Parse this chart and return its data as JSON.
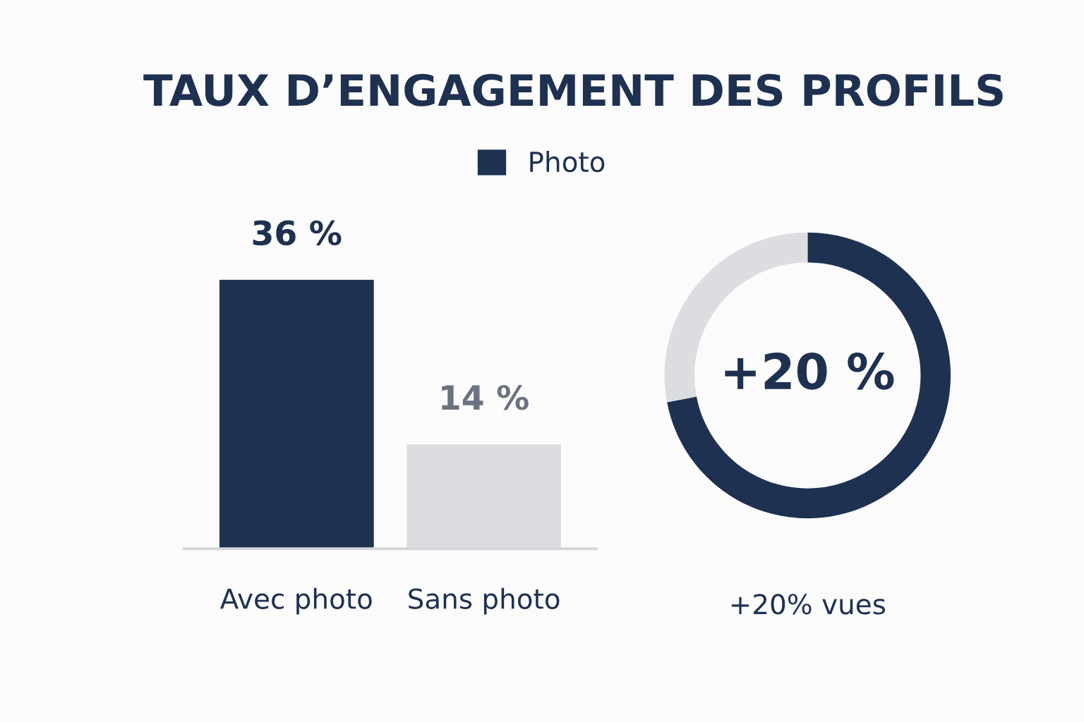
{
  "chart_data": [
    {
      "type": "bar",
      "title": "TAUX D’ENGAGEMENT DES PROFILS",
      "categories": [
        "Avec photo",
        "Sans photo"
      ],
      "series": [
        {
          "name": "Photo",
          "color": "#1f3150",
          "colors": [
            "#1f3150",
            "#dcdde1"
          ],
          "values": [
            36,
            14
          ],
          "value_labels": [
            "36 %",
            "14 %"
          ]
        }
      ],
      "legend": "top",
      "tick_labels": "x",
      "grid": false
    },
    {
      "type": "donut",
      "categories": [
        null,
        null
      ],
      "values": [
        72,
        28
      ],
      "colors": [
        "#1f3150",
        "#dcdde1"
      ],
      "xlabel": "+20% vues",
      "annotations": [
        "+20 %"
      ]
    }
  ]
}
